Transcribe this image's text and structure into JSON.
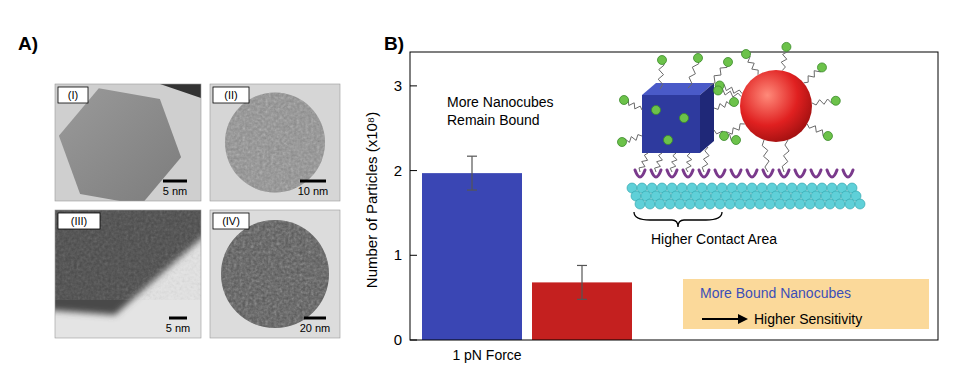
{
  "figure": {
    "panel_labels": [
      "A)",
      "B)"
    ]
  },
  "tem_images": [
    {
      "label": "(I)",
      "scale_bar": "5 nm"
    },
    {
      "label": "(II)",
      "scale_bar": "10 nm"
    },
    {
      "label": "(III)",
      "scale_bar": "5 nm"
    },
    {
      "label": "(IV)",
      "scale_bar": "20 nm"
    }
  ],
  "chart_data": {
    "type": "bar",
    "y_label": "Number of Particles (x10⁸)",
    "categories": [
      "1 pN Force"
    ],
    "series": [
      {
        "color": "#3a46b4",
        "values": [
          1.97
        ],
        "errors": [
          0.2
        ]
      },
      {
        "color": "#c4201f",
        "values": [
          0.68
        ],
        "errors": [
          0.2
        ]
      }
    ],
    "ylim": [
      0,
      3.4
    ],
    "yticks": [
      0,
      1,
      2,
      3
    ],
    "grid": false,
    "annotations": {
      "bound": [
        "More Nanocubes",
        "Remain Bound"
      ],
      "contact": "Higher Contact Area",
      "conclusion": [
        "More Bound Nanocubes",
        "Higher Sensitivity"
      ]
    }
  }
}
